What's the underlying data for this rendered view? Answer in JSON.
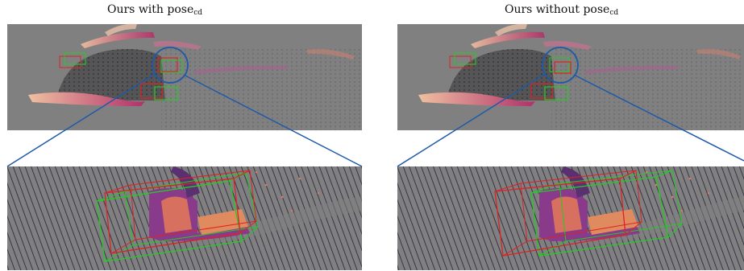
{
  "panels": [
    {
      "title_main": "Ours with pose",
      "title_sub": "cd"
    },
    {
      "title_main": "Ours without pose",
      "title_sub": "cd"
    }
  ],
  "colors": {
    "background_gray": "#808080",
    "ground_truth_box": "#22cc22",
    "predicted_box": "#dd2222",
    "zoom_lines": "#1f5aa6",
    "points_dark": "#1a1030",
    "points_warm": "#e07a5a"
  }
}
